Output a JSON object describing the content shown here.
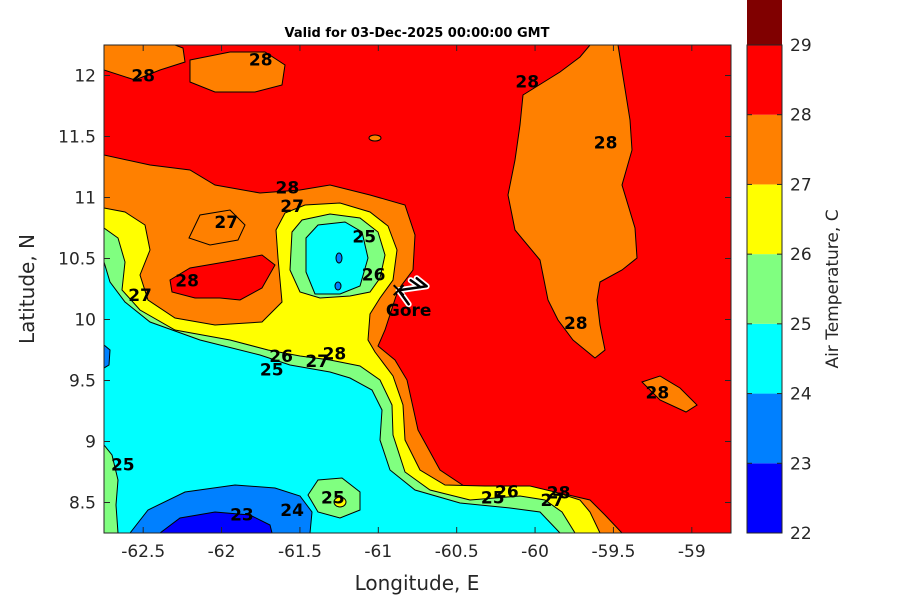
{
  "chart_data": {
    "type": "contour",
    "title": "Valid for 03-Dec-2025 00:00:00 GMT",
    "xlabel": "Longitude, E",
    "ylabel": "Latitude, N",
    "xlim": [
      -62.75,
      -58.75
    ],
    "ylim": [
      8.25,
      12.25
    ],
    "xticks": [
      -62.5,
      -62,
      -61.5,
      -61,
      -60.5,
      -60,
      -59.5,
      -59
    ],
    "xtick_labels": [
      "-62.5",
      "-62",
      "-61.5",
      "-61",
      "-60.5",
      "-60",
      "-59.5",
      "-59"
    ],
    "yticks": [
      8.5,
      9,
      9.5,
      10,
      10.5,
      11,
      11.5,
      12
    ],
    "ytick_labels": [
      "8.5",
      "9",
      "9.5",
      "10",
      "10.5",
      "11",
      "11.5",
      "12"
    ],
    "colorbar": {
      "label": "Air Temperature, C",
      "levels": [
        22,
        23,
        24,
        25,
        26,
        27,
        28,
        29
      ],
      "tick_labels": [
        "22",
        "23",
        "24",
        "25",
        "26",
        "27",
        "28",
        "29"
      ],
      "colors": [
        "#0000ff",
        "#0080ff",
        "#00ffff",
        "#80ff80",
        "#ffff00",
        "#ff8000",
        "#ff0000",
        "#800000"
      ]
    },
    "contour_labels": [
      {
        "text": "28",
        "lon": -61.75,
        "lat": 12.13
      },
      {
        "text": "28",
        "lon": -62.5,
        "lat": 12.0
      },
      {
        "text": "28",
        "lon": -60.05,
        "lat": 11.95
      },
      {
        "text": "28",
        "lon": -59.55,
        "lat": 11.45
      },
      {
        "text": "28",
        "lon": -61.58,
        "lat": 11.08
      },
      {
        "text": "27",
        "lon": -61.55,
        "lat": 10.93
      },
      {
        "text": "27",
        "lon": -61.97,
        "lat": 10.8
      },
      {
        "text": "25",
        "lon": -61.09,
        "lat": 10.68
      },
      {
        "text": "26",
        "lon": -61.03,
        "lat": 10.37
      },
      {
        "text": "28",
        "lon": -62.22,
        "lat": 10.32
      },
      {
        "text": "27",
        "lon": -62.52,
        "lat": 10.2
      },
      {
        "text": "28",
        "lon": -59.74,
        "lat": 9.97
      },
      {
        "text": "28",
        "lon": -61.28,
        "lat": 9.72
      },
      {
        "text": "26",
        "lon": -61.62,
        "lat": 9.7
      },
      {
        "text": "27",
        "lon": -61.39,
        "lat": 9.66
      },
      {
        "text": "25",
        "lon": -61.68,
        "lat": 9.59
      },
      {
        "text": "28",
        "lon": -59.22,
        "lat": 9.4
      },
      {
        "text": "25",
        "lon": -62.63,
        "lat": 8.81
      },
      {
        "text": "25",
        "lon": -61.29,
        "lat": 8.54
      },
      {
        "text": "28",
        "lon": -59.85,
        "lat": 8.58
      },
      {
        "text": "26",
        "lon": -60.18,
        "lat": 8.59
      },
      {
        "text": "25",
        "lon": -60.27,
        "lat": 8.54
      },
      {
        "text": "27",
        "lon": -59.89,
        "lat": 8.52
      },
      {
        "text": "24",
        "lon": -61.55,
        "lat": 8.44
      },
      {
        "text": "23",
        "lon": -61.87,
        "lat": 8.4
      }
    ],
    "station": {
      "name": "Gore",
      "lon": -60.87,
      "lat": 10.24
    }
  }
}
